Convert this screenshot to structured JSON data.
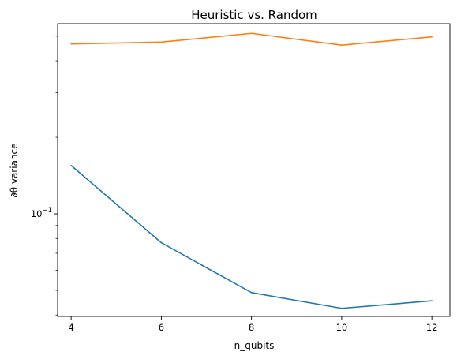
{
  "chart_data": {
    "type": "line",
    "title": "Heuristic vs. Random",
    "xlabel": "n_qubits",
    "ylabel": "∂θ variance",
    "yscale": "log",
    "x": [
      4,
      6,
      8,
      10,
      12
    ],
    "xticks": [
      "4",
      "6",
      "8",
      "10",
      "12"
    ],
    "xlim": [
      3.7,
      12.4
    ],
    "ylim": [
      0.0395,
      0.56
    ],
    "ytick_label": {
      "base": "10",
      "exponent": "−1",
      "value": 0.1
    },
    "grid": false,
    "legend": "none",
    "series": [
      {
        "color": "#1f77b4",
        "values": [
          0.155,
          0.077,
          0.049,
          0.0425,
          0.0455
        ]
      },
      {
        "color": "#ff7f0e",
        "values": [
          0.466,
          0.474,
          0.513,
          0.461,
          0.497
        ]
      }
    ]
  }
}
